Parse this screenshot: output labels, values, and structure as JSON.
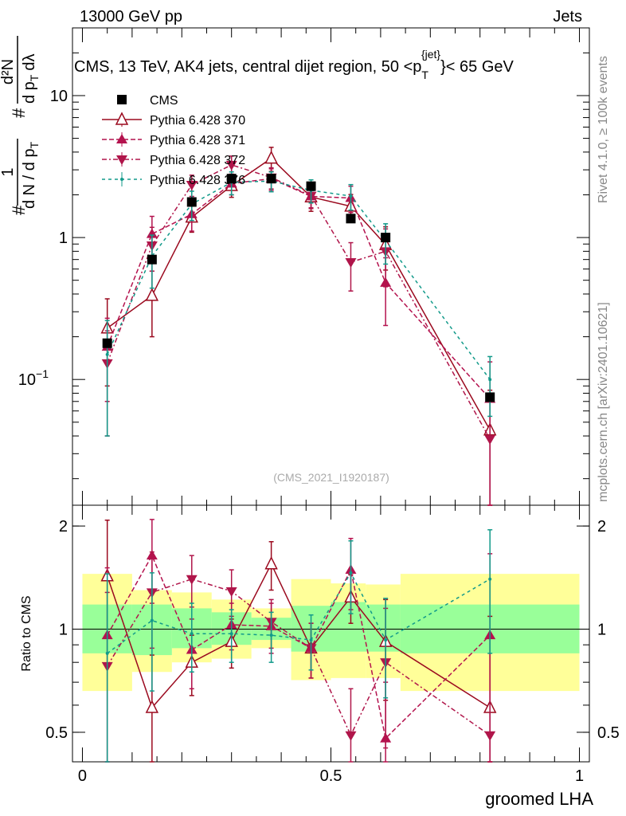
{
  "header": {
    "left": "13000 GeV pp",
    "right": "Jets"
  },
  "side_labels": {
    "rivet": "Rivet 4.1.0, ≥ 100k events",
    "source": "mcplots.cern.ch [arXiv:2401.10621]"
  },
  "colors": {
    "cms": "#000000",
    "py370": "#9b0a1f",
    "py371": "#b4124e",
    "py372": "#b0154a",
    "py376": "#129a8a",
    "band_inner": "#99ff99",
    "band_outer": "#ffff99"
  },
  "chart_data": [
    {
      "type": "line",
      "panel": "main",
      "title": "CMS, 13 TeV, AK4 jets, central dijet region, 50 <p_T^{jet}< 65 GeV",
      "title_parts": {
        "a": "CMS, 13 TeV, AK4 jets, central dijet region, 50 <p",
        "sub": "T",
        "sup": "{jet}",
        "b": "}< 65 GeV"
      },
      "watermark": "(CMS_2021_I1920187)",
      "ylabel_parts": {
        "num1": "1",
        "den1": "d N / d p",
        "den1sub": "T",
        "num2": "d²N",
        "den2": "d p",
        "den2sub": "T",
        "den2b": "dλ",
        "hash": "#"
      },
      "yscale": "log",
      "ylim": [
        0.013,
        30
      ],
      "xlim": [
        -0.02,
        1.02
      ],
      "yticks": [
        {
          "v": 10,
          "label": "10"
        },
        {
          "v": 1,
          "label": "1"
        },
        {
          "v": 0.1,
          "label": "10",
          "sup": "−1"
        }
      ],
      "legend": {
        "position": "top-left",
        "entries": [
          {
            "key": "cms",
            "label": "CMS"
          },
          {
            "key": "py370",
            "label": "Pythia 6.428 370"
          },
          {
            "key": "py371",
            "label": "Pythia 6.428 371"
          },
          {
            "key": "py372",
            "label": "Pythia 6.428 372"
          },
          {
            "key": "py376",
            "label": "Pythia 6.428 376"
          }
        ]
      },
      "x": [
        0.05,
        0.14,
        0.22,
        0.3,
        0.38,
        0.46,
        0.54,
        0.61,
        0.82
      ],
      "cms": [
        0.18,
        0.7,
        1.78,
        2.6,
        2.6,
        2.3,
        1.36,
        1.0,
        0.075
      ],
      "series": [
        {
          "key": "py370",
          "name": "Pythia 6.428 370",
          "marker": "triangle-open",
          "dash": "",
          "values": [
            0.23,
            0.39,
            1.39,
            2.32,
            3.62,
            1.93,
            1.66,
            0.89,
            0.044
          ],
          "err": [
            0.14,
            0.19,
            0.3,
            0.4,
            0.7,
            0.4,
            0.35,
            0.3,
            0.04
          ]
        },
        {
          "key": "py371",
          "name": "Pythia 6.428 371",
          "marker": "triangle-up",
          "dash": "6,3",
          "values": [
            0.17,
            1.06,
            1.46,
            2.4,
            2.6,
            1.95,
            1.9,
            0.48,
            0.073
          ],
          "err": [
            0.1,
            0.35,
            0.35,
            0.4,
            0.45,
            0.35,
            0.4,
            0.24,
            0.06
          ]
        },
        {
          "key": "py372",
          "name": "Pythia 6.428 372",
          "marker": "triangle-down",
          "dash": "6,3,2,3",
          "values": [
            0.13,
            0.88,
            2.35,
            3.25,
            2.65,
            1.97,
            0.67,
            0.8,
            0.038
          ],
          "err": [
            0.09,
            0.3,
            0.4,
            0.5,
            0.45,
            0.35,
            0.25,
            0.35,
            0.035
          ]
        },
        {
          "key": "py376",
          "name": "Pythia 6.428 376",
          "marker": "dot",
          "dash": "4,4",
          "values": [
            0.15,
            0.74,
            1.72,
            2.45,
            2.5,
            2.15,
            1.96,
            0.95,
            0.1
          ],
          "err": [
            0.11,
            0.3,
            0.4,
            0.45,
            0.4,
            0.4,
            0.4,
            0.3,
            0.045
          ]
        }
      ]
    },
    {
      "type": "line",
      "panel": "ratio",
      "ylabel": "Ratio to CMS",
      "xlabel": "groomed LHA",
      "yscale": "log",
      "ylim": [
        0.41,
        2.3
      ],
      "xlim": [
        -0.02,
        1.02
      ],
      "yticks": [
        {
          "v": 2,
          "label": "2"
        },
        {
          "v": 1,
          "label": "1"
        },
        {
          "v": 0.5,
          "label": "0.5"
        }
      ],
      "xticks": [
        {
          "v": 0,
          "label": "0"
        },
        {
          "v": 0.5,
          "label": "0.5"
        },
        {
          "v": 1,
          "label": "1"
        }
      ],
      "bands": [
        {
          "x0": 0.0,
          "x1": 0.1,
          "inner": [
            0.85,
            1.18
          ],
          "outer": [
            0.66,
            1.45
          ]
        },
        {
          "x0": 0.1,
          "x1": 0.18,
          "inner": [
            0.84,
            1.18
          ],
          "outer": [
            0.75,
            1.3
          ]
        },
        {
          "x0": 0.18,
          "x1": 0.26,
          "inner": [
            0.88,
            1.15
          ],
          "outer": [
            0.8,
            1.28
          ]
        },
        {
          "x0": 0.26,
          "x1": 0.34,
          "inner": [
            0.9,
            1.12
          ],
          "outer": [
            0.82,
            1.22
          ]
        },
        {
          "x0": 0.34,
          "x1": 0.42,
          "inner": [
            0.93,
            1.08
          ],
          "outer": [
            0.88,
            1.15
          ]
        },
        {
          "x0": 0.42,
          "x1": 0.5,
          "inner": [
            0.86,
            1.17
          ],
          "outer": [
            0.71,
            1.4
          ]
        },
        {
          "x0": 0.5,
          "x1": 0.57,
          "inner": [
            0.86,
            1.2
          ],
          "outer": [
            0.72,
            1.36
          ]
        },
        {
          "x0": 0.57,
          "x1": 0.64,
          "inner": [
            0.86,
            1.18
          ],
          "outer": [
            0.72,
            1.35
          ]
        },
        {
          "x0": 0.64,
          "x1": 1.0,
          "inner": [
            0.85,
            1.18
          ],
          "outer": [
            0.66,
            1.45
          ]
        }
      ],
      "x": [
        0.05,
        0.14,
        0.22,
        0.3,
        0.38,
        0.46,
        0.54,
        0.61,
        0.82
      ],
      "series": [
        {
          "key": "py370",
          "values": [
            1.43,
            0.59,
            0.8,
            0.92,
            1.55,
            0.88,
            1.24,
            0.92,
            0.59
          ],
          "err": [
            0.65,
            0.25,
            0.16,
            0.15,
            0.25,
            0.16,
            0.2,
            0.3,
            0.5
          ]
        },
        {
          "key": "py371",
          "values": [
            0.96,
            1.64,
            0.87,
            1.03,
            1.02,
            0.88,
            1.49,
            0.48,
            0.96
          ],
          "err": [
            0.55,
            0.45,
            0.2,
            0.16,
            0.17,
            0.16,
            0.35,
            0.22,
            0.7
          ]
        },
        {
          "key": "py372",
          "values": [
            0.78,
            1.28,
            1.4,
            1.29,
            1.05,
            0.88,
            0.49,
            0.8,
            0.49
          ],
          "err": [
            0.5,
            0.4,
            0.24,
            0.2,
            0.17,
            0.16,
            0.18,
            0.35,
            0.45
          ]
        },
        {
          "key": "py376",
          "values": [
            0.85,
            1.06,
            0.97,
            0.97,
            0.96,
            0.93,
            1.46,
            0.93,
            1.4
          ],
          "err": [
            0.6,
            0.4,
            0.22,
            0.17,
            0.16,
            0.17,
            0.35,
            0.3,
            0.55
          ]
        }
      ]
    }
  ]
}
